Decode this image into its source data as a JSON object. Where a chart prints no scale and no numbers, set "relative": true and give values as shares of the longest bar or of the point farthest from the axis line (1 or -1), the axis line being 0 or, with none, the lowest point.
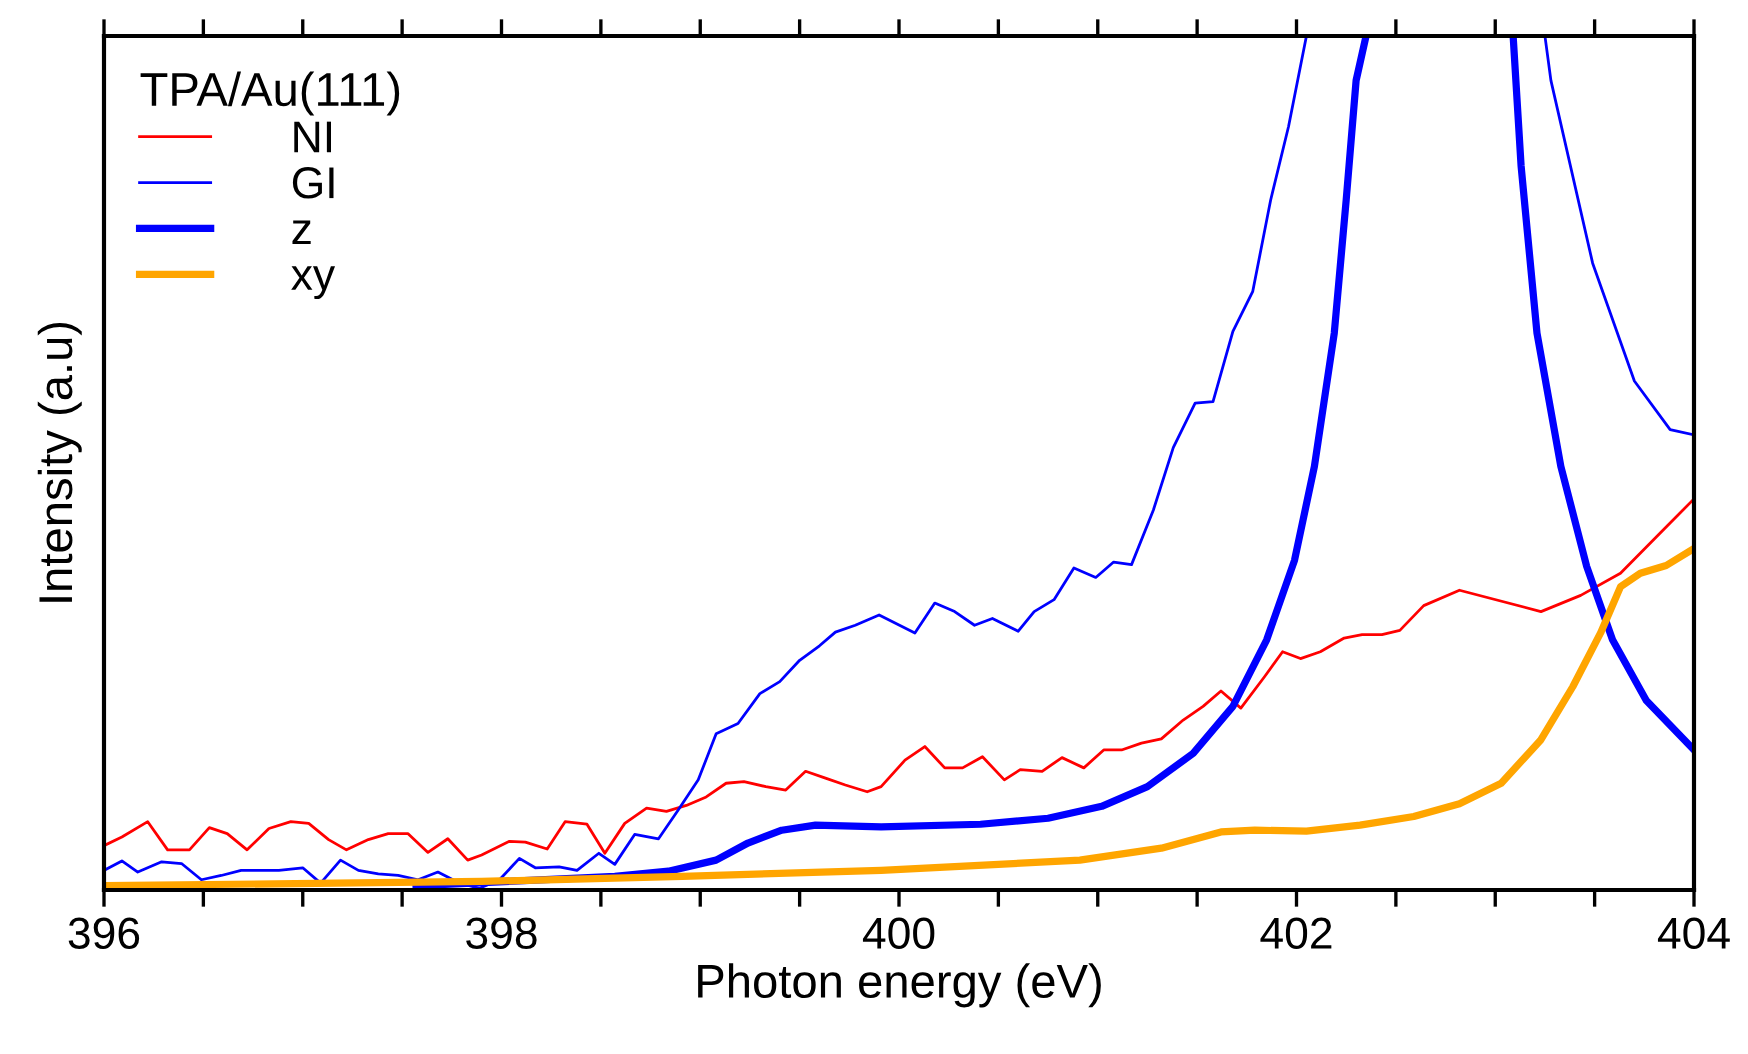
{
  "chart_data": {
    "type": "line",
    "relative": true,
    "xlabel": "Photon energy (eV)",
    "ylabel": "Intensity (a.u)",
    "legend_title": "TPA/Au(111)",
    "legend": "top left",
    "grid": false,
    "xlim": [
      396,
      404
    ],
    "xticks": [
      396,
      {
        "value": 396.5,
        "label": null
      },
      {
        "value": 397,
        "label": null
      },
      {
        "value": 397.5,
        "label": null
      },
      398,
      {
        "value": 398.5,
        "label": null
      },
      {
        "value": 399,
        "label": null
      },
      {
        "value": 399.5,
        "label": null
      },
      400,
      {
        "value": 400.5,
        "label": null
      },
      {
        "value": 401,
        "label": null
      },
      {
        "value": 401.5,
        "label": null
      },
      402,
      {
        "value": 402.5,
        "label": null
      },
      {
        "value": 403,
        "label": null
      },
      {
        "value": 403.5,
        "label": null
      },
      404
    ],
    "series": [
      {
        "name": "NI",
        "color": "#ff0000",
        "x": [
          396.0,
          396.09,
          396.22,
          396.32,
          396.43,
          396.53,
          396.62,
          396.72,
          396.83,
          396.94,
          397.03,
          397.13,
          397.22,
          397.33,
          397.43,
          397.53,
          397.63,
          397.73,
          397.83,
          397.9,
          398.04,
          398.12,
          398.23,
          398.32,
          398.43,
          398.52,
          398.62,
          398.73,
          398.83,
          398.93,
          399.03,
          399.13,
          399.22,
          399.33,
          399.43,
          399.53,
          399.63,
          399.73,
          399.84,
          399.91,
          400.03,
          400.13,
          400.23,
          400.32,
          400.42,
          400.53,
          400.61,
          400.72,
          400.82,
          400.93,
          401.03,
          401.12,
          401.22,
          401.32,
          401.43,
          401.53,
          401.62,
          401.72,
          401.84,
          401.93,
          402.02,
          402.12,
          402.24,
          402.33,
          402.43,
          402.52,
          402.64,
          402.82,
          403.23,
          403.43,
          403.63,
          403.83,
          404.0
        ],
        "values": [
          0.052,
          0.062,
          0.08,
          0.047,
          0.047,
          0.073,
          0.066,
          0.047,
          0.072,
          0.08,
          0.078,
          0.059,
          0.047,
          0.059,
          0.066,
          0.066,
          0.044,
          0.06,
          0.035,
          0.041,
          0.057,
          0.056,
          0.048,
          0.08,
          0.077,
          0.043,
          0.078,
          0.096,
          0.092,
          0.099,
          0.109,
          0.125,
          0.127,
          0.121,
          0.117,
          0.139,
          0.131,
          0.123,
          0.115,
          0.121,
          0.152,
          0.168,
          0.143,
          0.143,
          0.156,
          0.129,
          0.141,
          0.139,
          0.155,
          0.143,
          0.164,
          0.164,
          0.172,
          0.177,
          0.199,
          0.215,
          0.233,
          0.213,
          0.25,
          0.279,
          0.271,
          0.279,
          0.295,
          0.299,
          0.299,
          0.304,
          0.333,
          0.351,
          0.326,
          0.345,
          0.371,
          0.418,
          0.458
        ]
      },
      {
        "name": "GI",
        "color": "#0000ff",
        "x": [
          396.0,
          396.09,
          396.17,
          396.29,
          396.39,
          396.49,
          396.59,
          396.69,
          396.78,
          396.88,
          397.0,
          397.09,
          397.19,
          397.28,
          397.38,
          397.48,
          397.58,
          397.68,
          397.79,
          397.89,
          397.99,
          398.09,
          398.17,
          398.29,
          398.38,
          398.49,
          398.57,
          398.67,
          398.79,
          398.89,
          398.99,
          399.08,
          399.19,
          399.3,
          399.4,
          399.5,
          399.6,
          399.68,
          399.78,
          399.9,
          400.08,
          400.18,
          400.28,
          400.38,
          400.47,
          400.6,
          400.68,
          400.78,
          400.88,
          400.99,
          401.08,
          401.17,
          401.28,
          401.38,
          401.49,
          401.58,
          401.68,
          401.78,
          401.87,
          401.96,
          402.05,
          402.6,
          403.25,
          403.28,
          403.49,
          403.7,
          403.88,
          404.0
        ],
        "values": [
          0.023,
          0.034,
          0.021,
          0.033,
          0.031,
          0.012,
          0.017,
          0.023,
          0.023,
          0.023,
          0.026,
          0.008,
          0.035,
          0.023,
          0.019,
          0.017,
          0.012,
          0.021,
          0.008,
          0.002,
          0.012,
          0.037,
          0.026,
          0.027,
          0.023,
          0.043,
          0.03,
          0.065,
          0.06,
          0.094,
          0.129,
          0.183,
          0.195,
          0.23,
          0.244,
          0.269,
          0.286,
          0.302,
          0.31,
          0.322,
          0.301,
          0.336,
          0.326,
          0.31,
          0.318,
          0.303,
          0.326,
          0.34,
          0.377,
          0.366,
          0.384,
          0.381,
          0.445,
          0.518,
          0.57,
          0.572,
          0.654,
          0.701,
          0.808,
          0.894,
          1.0,
          null,
          1.0,
          0.948,
          0.734,
          0.596,
          0.539,
          0.533
        ]
      },
      {
        "name": "z",
        "color": "#0000ff",
        "x": [
          397.57,
          398.57,
          398.84,
          399.08,
          399.24,
          399.41,
          399.58,
          399.91,
          400.41,
          400.75,
          401.02,
          401.25,
          401.48,
          401.68,
          401.85,
          401.99,
          402.09,
          402.19,
          402.25,
          402.3,
          402.35,
          402.7,
          403.09,
          403.13,
          403.21,
          403.33,
          403.46,
          403.59,
          403.76,
          404.0
        ],
        "values": [
          0.005,
          0.016,
          0.022,
          0.035,
          0.055,
          0.07,
          0.076,
          0.074,
          0.077,
          0.084,
          0.098,
          0.121,
          0.16,
          0.215,
          0.293,
          0.386,
          0.496,
          0.652,
          0.808,
          0.948,
          1.0,
          null,
          1.0,
          0.848,
          0.652,
          0.496,
          0.379,
          0.293,
          0.222,
          0.164
        ]
      },
      {
        "name": "xy",
        "color": "#ffa500",
        "x": [
          396.0,
          397.9,
          398.91,
          399.91,
          400.91,
          401.32,
          401.62,
          401.79,
          402.05,
          402.32,
          402.59,
          402.82,
          403.03,
          403.23,
          403.39,
          403.53,
          403.63,
          403.73,
          403.86,
          404.0
        ],
        "values": [
          0.005,
          0.01,
          0.016,
          0.023,
          0.035,
          0.049,
          0.068,
          0.07,
          0.069,
          0.076,
          0.086,
          0.101,
          0.125,
          0.176,
          0.238,
          0.301,
          0.355,
          0.371,
          0.38,
          0.4
        ]
      }
    ]
  }
}
